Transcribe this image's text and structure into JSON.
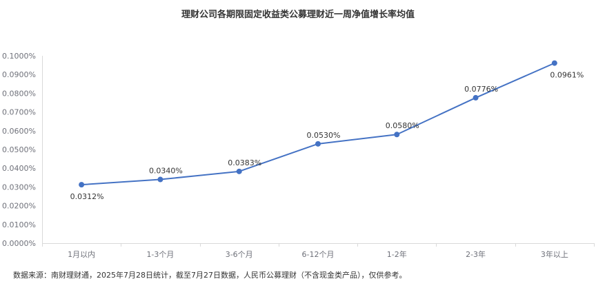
{
  "chart_data": {
    "type": "line",
    "title": "理财公司各期限固定收益类公募理财近一周净值增长率均值",
    "categories": [
      "1月以内",
      "1-3个月",
      "3-6个月",
      "6-12个月",
      "1-2年",
      "2-3年",
      "3年以上"
    ],
    "series": [
      {
        "values": [
          0.0312,
          0.034,
          0.0383,
          0.053,
          0.058,
          0.0776,
          0.0961
        ]
      }
    ],
    "data_labels": [
      "0.0312%",
      "0.0340%",
      "0.0383%",
      "0.0530%",
      "0.0580%",
      "0.0776%",
      "0.0961%"
    ],
    "yticks": [
      "0.0000%",
      "0.0100%",
      "0.0200%",
      "0.0300%",
      "0.0400%",
      "0.0500%",
      "0.0600%",
      "0.0700%",
      "0.0800%",
      "0.0900%",
      "0.1000%"
    ],
    "ylim": [
      0,
      0.1
    ],
    "grid": false,
    "legend": "none",
    "colors": {
      "line": "#4472c4",
      "axis": "#d9d9d9",
      "text": "#333333",
      "tick": "#6e7079"
    }
  },
  "footnote": "数据来源：南财理财通，2025年7月28日统计，截至7月27日数据，人民币公募理财（不含现金类产品），仅供参考。"
}
